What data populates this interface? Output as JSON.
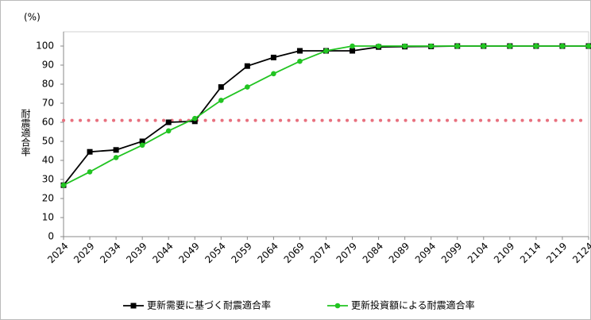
{
  "chart_data": {
    "type": "line",
    "unit_label": "(%)",
    "y_label": "耐震適合率",
    "categories": [
      "2024",
      "2029",
      "2034",
      "2039",
      "2044",
      "2049",
      "2054",
      "2059",
      "2064",
      "2069",
      "2074",
      "2079",
      "2084",
      "2089",
      "2094",
      "2099",
      "2104",
      "2109",
      "2114",
      "2119",
      "2124"
    ],
    "series": [
      {
        "name": "更新需要に基づく耐震適合率",
        "color": "#000000",
        "marker": "square",
        "values": [
          27,
          44.5,
          45.5,
          50,
          60,
          60.5,
          78.5,
          89.5,
          94,
          97.5,
          97.5,
          97.5,
          99.5,
          99.7,
          99.8,
          100,
          100,
          100,
          100,
          100,
          100
        ]
      },
      {
        "name": "更新投資額による耐震適合率",
        "color": "#22c422",
        "marker": "circle",
        "values": [
          27,
          34,
          41.5,
          48,
          55.5,
          62,
          71.5,
          78.5,
          85.5,
          92,
          97.5,
          100,
          100,
          100,
          100,
          100,
          100,
          100,
          100,
          100,
          100
        ]
      }
    ],
    "reference_line": {
      "value": 61,
      "color": "#e8707e"
    },
    "ylim": [
      0,
      100
    ],
    "yticks": [
      0,
      10,
      20,
      30,
      40,
      50,
      60,
      70,
      80,
      90,
      100
    ],
    "legend": "bottom"
  }
}
